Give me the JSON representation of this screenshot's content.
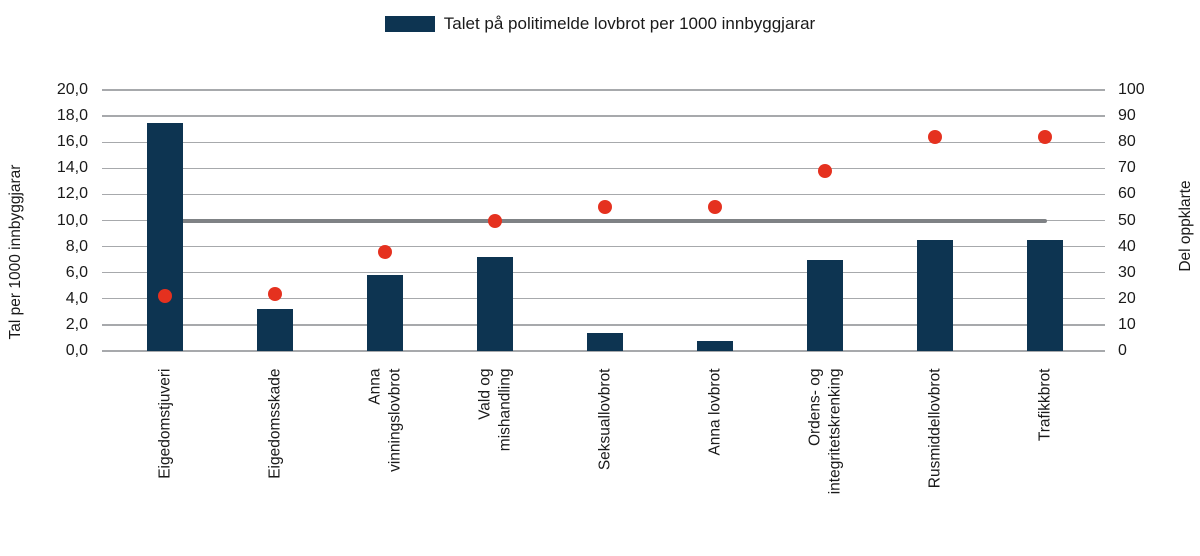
{
  "chart_data": {
    "type": "bar",
    "subtype": "combo-bar-scatter-with-reference-line",
    "title": "",
    "legend": [
      {
        "label": "Talet på politimelde lovbrot per 1000 innbyggjarar",
        "marker": "square",
        "color": "#0d3451"
      }
    ],
    "legend_position": "top-center",
    "grid": {
      "horizontal": true,
      "vertical": false,
      "color": "#a7a9ac"
    },
    "categories": [
      "Eigedomstjuveri",
      "Eigedomsskade",
      "Anna vinningslovbrot",
      "Vald og mishandling",
      "Seksuallovbrot",
      "Anna lovbrot",
      "Ordens- og integritetskrenking",
      "Rusmiddellovbrot",
      "Trafikkbrot"
    ],
    "category_label_lines": [
      [
        "Eigedomstjuveri"
      ],
      [
        "Eigedomsskade"
      ],
      [
        "Anna",
        "vinningslovbrot"
      ],
      [
        "Vald og",
        "mishandling"
      ],
      [
        "Seksuallovbrot"
      ],
      [
        "Anna lovbrot"
      ],
      [
        "Ordens- og",
        "integritetskrenking"
      ],
      [
        "Rusmiddellovbrot"
      ],
      [
        "Trafikkbrot"
      ]
    ],
    "series": [
      {
        "name": "Talet på politimelde lovbrot per 1000 innbyggjarar",
        "type": "bar",
        "axis": "left",
        "color": "#0d3451",
        "values": [
          17.5,
          3.2,
          5.8,
          7.2,
          1.4,
          0.8,
          7.0,
          8.5,
          8.5
        ]
      },
      {
        "name": "Del oppklarte",
        "type": "scatter",
        "axis": "right",
        "color": "#e5311f",
        "values": [
          21,
          22,
          38,
          50,
          55,
          55,
          69,
          82,
          82
        ]
      },
      {
        "name": "referanselinje",
        "type": "line",
        "axis": "right",
        "color": "#7f8285",
        "constant_value": 50
      }
    ],
    "left_axis": {
      "label": "Tal per 1000 innbyggjarar",
      "min": 0,
      "max": 20,
      "step": 2,
      "tick_labels": [
        "0,0",
        "2,0",
        "4,0",
        "6,0",
        "8,0",
        "10,0",
        "12,0",
        "14,0",
        "16,0",
        "18,0",
        "20,0"
      ]
    },
    "right_axis": {
      "label": "Del oppklarte",
      "min": 0,
      "max": 100,
      "step": 10,
      "tick_labels": [
        "0",
        "10",
        "20",
        "30",
        "40",
        "50",
        "60",
        "70",
        "80",
        "90",
        "100"
      ]
    }
  },
  "colors": {
    "bar": "#0d3451",
    "dot": "#e5311f",
    "reference_line": "#7f8285",
    "gridline": "#a7a9ac",
    "text": "#1a1a1a",
    "background": "#ffffff"
  }
}
